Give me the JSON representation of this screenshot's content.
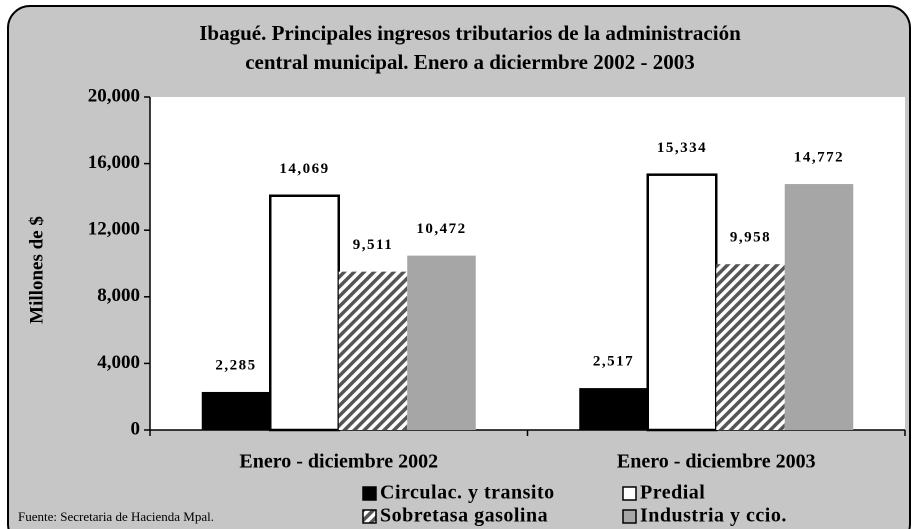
{
  "chart_data": {
    "type": "bar",
    "title": [
      "Ibagué. Principales ingresos tributarios de la administración",
      "central municipal. Enero a diciermbre 2002 - 2003"
    ],
    "ylabel": "Millones de $",
    "source": "Fuente: Secretaria de Hacienda Mpal.",
    "categories": [
      "Enero - diciembre 2002",
      "Enero - diciembre 2003"
    ],
    "series": [
      {
        "name": "Circulac. y transito",
        "color": "#000000",
        "values": [
          2285,
          2517
        ],
        "value_labels": [
          "2,285",
          "2,517"
        ]
      },
      {
        "name": "Predial",
        "color": "#ffffff",
        "values": [
          14069,
          15334
        ],
        "value_labels": [
          "14,069",
          "15,334"
        ]
      },
      {
        "name": "Sobretasa gasolina",
        "color": "hatch",
        "values": [
          9511,
          9958
        ],
        "value_labels": [
          "9,511",
          "9,958"
        ]
      },
      {
        "name": "Industria y ccio.",
        "color": "#a6a6a6",
        "values": [
          10472,
          14772
        ],
        "value_labels": [
          "10,472",
          "14,772"
        ]
      }
    ],
    "ylim": [
      0,
      20000
    ],
    "yticks": [
      0,
      {
        "value": 4000,
        "label": "4,000"
      },
      {
        "value": 8000,
        "label": "8,000"
      },
      {
        "value": 12000,
        "label": "12,000"
      },
      {
        "value": 16000,
        "label": "16,000"
      },
      {
        "value": 20000,
        "label": "20,000"
      }
    ],
    "grid": false
  }
}
